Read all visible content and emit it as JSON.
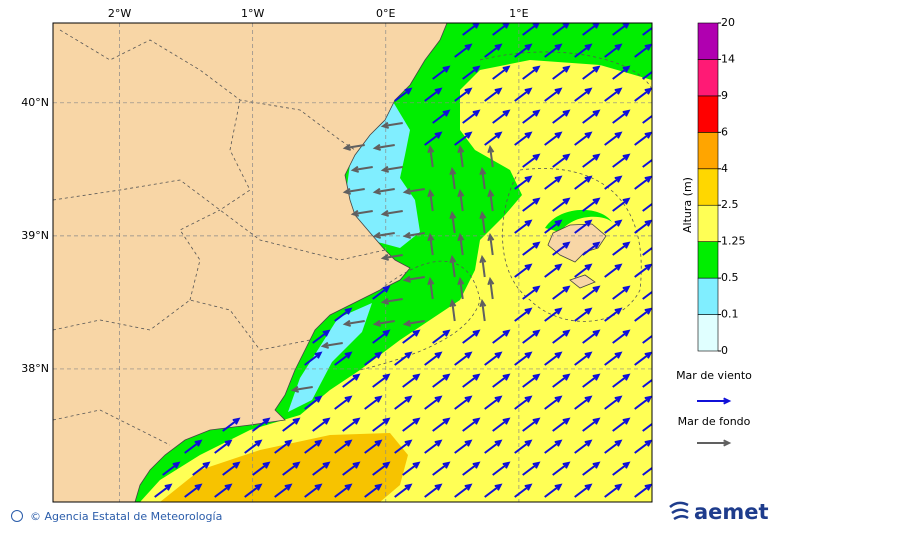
{
  "map": {
    "lon_ticks": [
      {
        "value": -2,
        "label": "2°W"
      },
      {
        "value": -1,
        "label": "1°W"
      },
      {
        "value": 0,
        "label": "0°E"
      },
      {
        "value": 1,
        "label": "1°E"
      }
    ],
    "lat_ticks": [
      {
        "value": 40,
        "label": "40°N"
      },
      {
        "value": 39,
        "label": "39°N"
      },
      {
        "value": 38,
        "label": "38°N"
      }
    ],
    "lon_range": [
      -2.5,
      2.0
    ],
    "lat_range": [
      37.0,
      40.6
    ]
  },
  "colorbar": {
    "title": "Altura (m)",
    "levels": [
      0,
      0.1,
      0.5,
      1.25,
      2.5,
      4,
      6,
      9,
      14,
      20
    ],
    "colors": [
      "#e0ffff",
      "#80eeff",
      "#00ee00",
      "#ffff55",
      "#ffd700",
      "#ffa500",
      "#ff0000",
      "#ff1a75",
      "#b000b0"
    ]
  },
  "legend": [
    {
      "label": "Mar de viento",
      "color": "#1010d8"
    },
    {
      "label": "Mar de fondo",
      "color": "#606060"
    }
  ],
  "footer": {
    "credit": "© Agencia Estatal de Meteorología",
    "logo": "aemet"
  }
}
